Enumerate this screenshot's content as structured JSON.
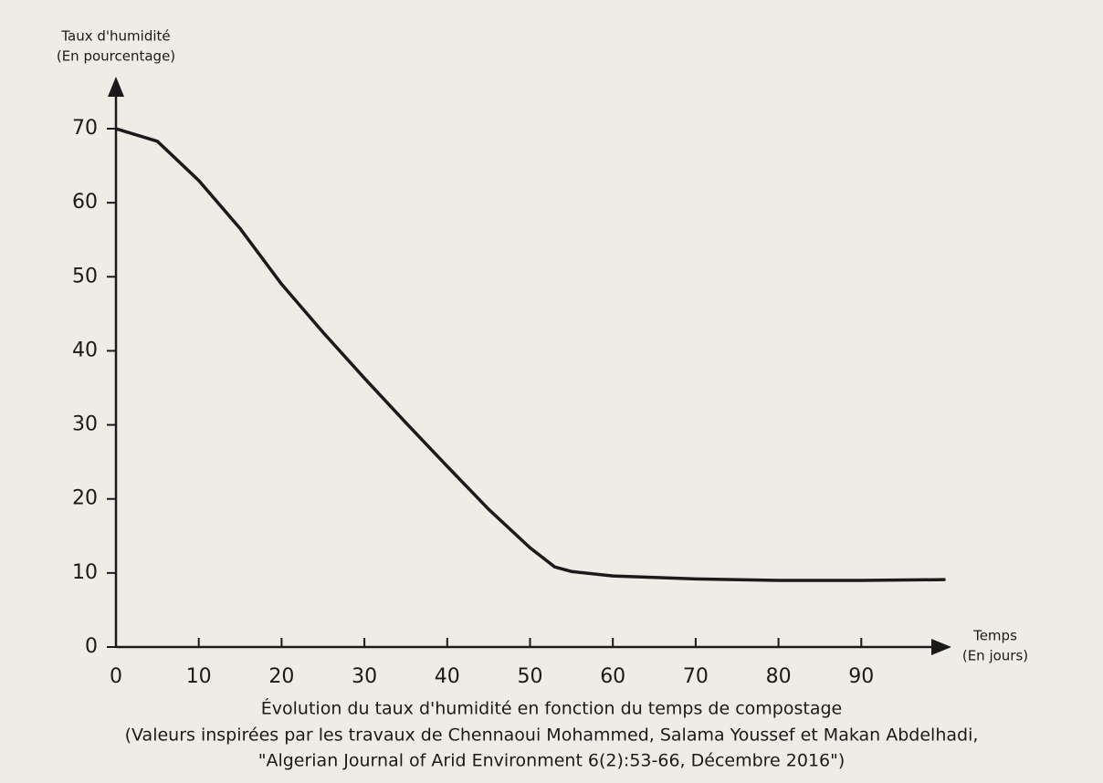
{
  "chart_data": {
    "type": "line",
    "ylabel": [
      "Taux d'humidité",
      "(En pourcentage)"
    ],
    "xlabel": [
      "Temps",
      "(En jours)"
    ],
    "caption": [
      "Évolution du taux d'humidité en fonction du temps de compostage",
      "(Valeurs inspirées par les travaux de Chennaoui Mohammed, Salama Youssef et Makan Abdelhadi,",
      "\"Algerian Journal of Arid Environment 6(2):53-66, Décembre 2016\")"
    ],
    "x": [
      0,
      5,
      10,
      15,
      20,
      25,
      30,
      35,
      40,
      45,
      50,
      53,
      55,
      60,
      70,
      80,
      90,
      100
    ],
    "series": [
      {
        "name": "Taux d'humidité",
        "color": "#1a1a1a",
        "values": [
          70,
          68.3,
          63,
          56.5,
          49,
          42.5,
          36.3,
          30.3,
          24.4,
          18.6,
          13.4,
          10.8,
          10.2,
          9.6,
          9.2,
          9.0,
          9.0,
          9.1
        ]
      }
    ],
    "xlim": [
      0,
      100
    ],
    "ylim": [
      0,
      70
    ],
    "xticks": [
      0,
      10,
      20,
      30,
      40,
      50,
      60,
      70,
      80,
      90
    ],
    "yticks": [
      0,
      10,
      20,
      30,
      40,
      50,
      60,
      70
    ],
    "grid": false
  }
}
